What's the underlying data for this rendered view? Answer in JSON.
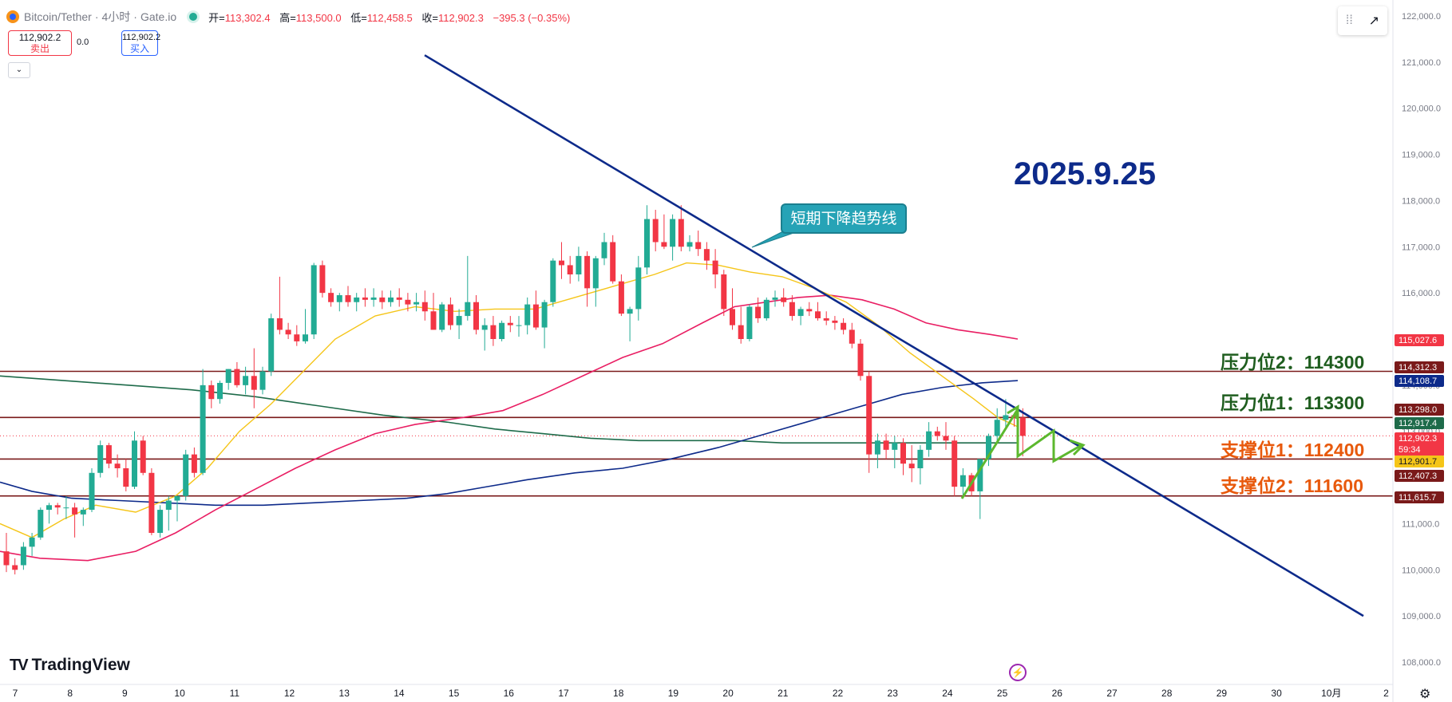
{
  "header": {
    "symbol": "Bitcoin/Tether",
    "interval": "4小时",
    "exchange": "Gate.io",
    "open_label": "开=",
    "open": "113,302.4",
    "high_label": "高=",
    "high": "113,500.0",
    "low_label": "低=",
    "low": "112,458.5",
    "close_label": "收=",
    "close": "112,902.3",
    "change": "−395.3 (−0.35%)"
  },
  "trade": {
    "sell_price": "112,902.2",
    "sell_label": "卖出",
    "spread": "0.0",
    "buy_price": "112,902.2",
    "buy_label": "买入"
  },
  "annotations": {
    "date": "2025.9.25",
    "trendline_label": "短期下降趋势线",
    "resistance2": "压力位2：114300",
    "resistance1": "压力位1：113300",
    "support1": "支撑位1：112400",
    "support2": "支撑位2：111600"
  },
  "branding": {
    "logo": "TradingView"
  },
  "colors": {
    "up": "#22ab94",
    "down": "#f23645",
    "ma_short": "#f5c518",
    "ma_mid": "#e91e63",
    "ma_long": "#0d2a8a",
    "ma_green": "#1e6b4a",
    "trendline": "#0d2a8a",
    "level": "#7a1a1a",
    "arrow": "#5cb82e"
  },
  "chart_data": {
    "type": "candlestick",
    "y_ticks": [
      "122,000.0",
      "121,000.0",
      "120,000.0",
      "119,000.0",
      "118,000.0",
      "117,000.0",
      "116,000.0",
      "115,000.0",
      "114,000.0",
      "113,000.0",
      "112,000.0",
      "111,000.0",
      "110,000.0",
      "109,000.0",
      "108,000.0"
    ],
    "ylim": [
      107700,
      122200
    ],
    "x_ticks": [
      "7",
      "8",
      "9",
      "10",
      "11",
      "12",
      "13",
      "14",
      "15",
      "16",
      "17",
      "18",
      "19",
      "20",
      "21",
      "22",
      "23",
      "24",
      "25",
      "26",
      "27",
      "28",
      "29",
      "30",
      "10月",
      "2"
    ],
    "candles": [
      [
        110400,
        110800,
        109950,
        110100
      ],
      [
        110100,
        110250,
        109900,
        110000
      ],
      [
        110100,
        110600,
        110000,
        110500
      ],
      [
        110500,
        110800,
        110300,
        110700
      ],
      [
        110700,
        111350,
        110650,
        111300
      ],
      [
        111300,
        111450,
        111000,
        111400
      ],
      [
        111400,
        111450,
        111200,
        111350
      ],
      [
        111350,
        111600,
        111100,
        111350
      ],
      [
        111350,
        111450,
        110700,
        111200
      ],
      [
        111200,
        111350,
        110950,
        111300
      ],
      [
        111300,
        112200,
        111250,
        112100
      ],
      [
        112100,
        112800,
        112000,
        112700
      ],
      [
        112700,
        112750,
        112200,
        112300
      ],
      [
        112300,
        112500,
        112000,
        112200
      ],
      [
        112200,
        112400,
        111700,
        111800
      ],
      [
        111800,
        113000,
        111750,
        112800
      ],
      [
        112800,
        112900,
        112050,
        112100
      ],
      [
        112100,
        112200,
        110750,
        110800
      ],
      [
        110800,
        111400,
        110700,
        111300
      ],
      [
        111300,
        111600,
        110850,
        111500
      ],
      [
        111500,
        111550,
        111050,
        111600
      ],
      [
        111600,
        112600,
        111500,
        112500
      ],
      [
        112500,
        112650,
        112000,
        112100
      ],
      [
        112100,
        114350,
        112050,
        114000
      ],
      [
        114000,
        114100,
        113500,
        113700
      ],
      [
        113700,
        114100,
        113600,
        114050
      ],
      [
        114050,
        114350,
        113900,
        114350
      ],
      [
        114350,
        114500,
        113950,
        114000
      ],
      [
        114000,
        114400,
        113800,
        114200
      ],
      [
        114200,
        114800,
        113500,
        113900
      ],
      [
        113900,
        114400,
        113800,
        114300
      ],
      [
        114300,
        115550,
        114200,
        115450
      ],
      [
        115450,
        116350,
        115100,
        115200
      ],
      [
        115200,
        115350,
        115000,
        115100
      ],
      [
        115100,
        115300,
        114850,
        114950
      ],
      [
        114950,
        115650,
        114900,
        115100
      ],
      [
        115100,
        116650,
        115000,
        116600
      ],
      [
        116600,
        116700,
        115900,
        116000
      ],
      [
        116000,
        116100,
        115700,
        115800
      ],
      [
        115800,
        116000,
        115600,
        115950
      ],
      [
        115950,
        116150,
        115700,
        115800
      ],
      [
        115800,
        116000,
        115600,
        115900
      ],
      [
        115900,
        116100,
        115700,
        115850
      ],
      [
        115850,
        116100,
        115700,
        115900
      ],
      [
        115900,
        116050,
        115650,
        115800
      ],
      [
        115800,
        116050,
        115700,
        115900
      ],
      [
        115900,
        116100,
        115700,
        115850
      ],
      [
        115850,
        116000,
        115600,
        115750
      ],
      [
        115750,
        116000,
        115600,
        115800
      ],
      [
        115800,
        116050,
        115400,
        115600
      ],
      [
        115600,
        116000,
        115200,
        115200
      ],
      [
        115200,
        115800,
        115150,
        115750
      ],
      [
        115750,
        115900,
        115200,
        115300
      ],
      [
        115300,
        115650,
        115000,
        115500
      ],
      [
        115500,
        116800,
        115400,
        115800
      ],
      [
        115800,
        115950,
        115100,
        115200
      ],
      [
        115200,
        115450,
        114750,
        115300
      ],
      [
        115300,
        115500,
        114850,
        115000
      ],
      [
        115000,
        115400,
        114950,
        115350
      ],
      [
        115350,
        115500,
        115150,
        115300
      ],
      [
        115300,
        115500,
        115050,
        115300
      ],
      [
        115300,
        115900,
        115100,
        115750
      ],
      [
        115750,
        116050,
        115200,
        115250
      ],
      [
        115250,
        115850,
        114800,
        115800
      ],
      [
        115800,
        116750,
        115700,
        116700
      ],
      [
        116700,
        117100,
        116300,
        116600
      ],
      [
        116600,
        116800,
        116200,
        116400
      ],
      [
        116400,
        117000,
        116250,
        116800
      ],
      [
        116800,
        116900,
        115700,
        116100
      ],
      [
        116100,
        116800,
        115700,
        116750
      ],
      [
        116750,
        117300,
        116600,
        117100
      ],
      [
        117100,
        117250,
        116200,
        116250
      ],
      [
        116250,
        116400,
        115500,
        115550
      ],
      [
        115550,
        115700,
        114950,
        115650
      ],
      [
        115650,
        116800,
        115400,
        116550
      ],
      [
        116550,
        117900,
        116400,
        117600
      ],
      [
        117600,
        117800,
        116900,
        117100
      ],
      [
        117100,
        117700,
        116950,
        117000
      ],
      [
        117000,
        117700,
        116700,
        117600
      ],
      [
        117600,
        117900,
        116900,
        117000
      ],
      [
        117000,
        117250,
        116900,
        117100
      ],
      [
        117100,
        117350,
        116800,
        116950
      ],
      [
        116950,
        117100,
        116500,
        116700
      ],
      [
        116700,
        116950,
        116100,
        116400
      ],
      [
        116400,
        116500,
        115500,
        115650
      ],
      [
        115650,
        116100,
        115200,
        115300
      ],
      [
        115300,
        115700,
        114900,
        115000
      ],
      [
        115000,
        115750,
        114950,
        115700
      ],
      [
        115700,
        115900,
        115350,
        115450
      ],
      [
        115450,
        115900,
        115400,
        115850
      ],
      [
        115850,
        116050,
        115700,
        115900
      ],
      [
        115900,
        116100,
        115700,
        115800
      ],
      [
        115800,
        115950,
        115400,
        115500
      ],
      [
        115500,
        115700,
        115300,
        115650
      ],
      [
        115650,
        115800,
        115500,
        115600
      ],
      [
        115600,
        115800,
        115400,
        115450
      ],
      [
        115450,
        115600,
        115300,
        115400
      ],
      [
        115400,
        115500,
        115200,
        115350
      ],
      [
        115350,
        115450,
        115100,
        115200
      ],
      [
        115200,
        115350,
        114800,
        114900
      ],
      [
        114900,
        115000,
        114100,
        114200
      ],
      [
        114200,
        114300,
        112100,
        112500
      ],
      [
        112500,
        112950,
        112200,
        112800
      ],
      [
        112800,
        112950,
        112400,
        112600
      ],
      [
        112600,
        112900,
        112200,
        112750
      ],
      [
        112750,
        112850,
        112050,
        112300
      ],
      [
        112300,
        112700,
        111900,
        112200
      ],
      [
        112200,
        112700,
        111850,
        112600
      ],
      [
        112600,
        113200,
        112450,
        113000
      ],
      [
        113000,
        113100,
        112800,
        112900
      ],
      [
        112900,
        113200,
        112600,
        112800
      ],
      [
        112800,
        112900,
        111600,
        111800
      ],
      [
        111800,
        112200,
        111550,
        112050
      ],
      [
        112050,
        112100,
        111600,
        111700
      ],
      [
        111700,
        112300,
        111100,
        112400
      ],
      [
        112400,
        112950,
        112250,
        112900
      ],
      [
        112900,
        113500,
        112800,
        113250
      ],
      [
        113250,
        113700,
        113050,
        113350
      ],
      [
        113350,
        113400,
        113100,
        113300
      ],
      [
        113300,
        113500,
        112458,
        112902
      ]
    ],
    "ma_short": [
      [
        0,
        111000
      ],
      [
        40,
        110700
      ],
      [
        80,
        111100
      ],
      [
        120,
        111400
      ],
      [
        170,
        111250
      ],
      [
        220,
        111600
      ],
      [
        260,
        112200
      ],
      [
        300,
        113000
      ],
      [
        340,
        113600
      ],
      [
        380,
        114300
      ],
      [
        420,
        115000
      ],
      [
        470,
        115500
      ],
      [
        520,
        115700
      ],
      [
        570,
        115600
      ],
      [
        620,
        115650
      ],
      [
        670,
        115650
      ],
      [
        720,
        115900
      ],
      [
        770,
        116150
      ],
      [
        820,
        116400
      ],
      [
        860,
        116650
      ],
      [
        900,
        116600
      ],
      [
        940,
        116450
      ],
      [
        980,
        116350
      ],
      [
        1020,
        116100
      ],
      [
        1060,
        115800
      ],
      [
        1100,
        115300
      ],
      [
        1140,
        114700
      ],
      [
        1180,
        114200
      ],
      [
        1220,
        113700
      ],
      [
        1250,
        113300
      ],
      [
        1275,
        113100
      ]
    ],
    "ma_mid": [
      [
        0,
        110400
      ],
      [
        50,
        110250
      ],
      [
        110,
        110200
      ],
      [
        170,
        110400
      ],
      [
        220,
        110800
      ],
      [
        270,
        111300
      ],
      [
        320,
        111750
      ],
      [
        370,
        112200
      ],
      [
        420,
        112600
      ],
      [
        470,
        112950
      ],
      [
        520,
        113150
      ],
      [
        580,
        113300
      ],
      [
        630,
        113450
      ],
      [
        680,
        113800
      ],
      [
        730,
        114200
      ],
      [
        780,
        114600
      ],
      [
        830,
        114900
      ],
      [
        880,
        115350
      ],
      [
        920,
        115700
      ],
      [
        960,
        115800
      ],
      [
        1000,
        115900
      ],
      [
        1040,
        115950
      ],
      [
        1080,
        115850
      ],
      [
        1120,
        115650
      ],
      [
        1160,
        115350
      ],
      [
        1200,
        115200
      ],
      [
        1240,
        115100
      ],
      [
        1275,
        115000
      ]
    ],
    "ma_long": [
      [
        0,
        111900
      ],
      [
        40,
        111700
      ],
      [
        90,
        111550
      ],
      [
        150,
        111500
      ],
      [
        210,
        111450
      ],
      [
        270,
        111400
      ],
      [
        330,
        111400
      ],
      [
        390,
        111450
      ],
      [
        450,
        111500
      ],
      [
        510,
        111550
      ],
      [
        560,
        111650
      ],
      [
        610,
        111800
      ],
      [
        660,
        111950
      ],
      [
        720,
        112100
      ],
      [
        780,
        112200
      ],
      [
        840,
        112400
      ],
      [
        900,
        112650
      ],
      [
        960,
        112950
      ],
      [
        1020,
        113250
      ],
      [
        1080,
        113550
      ],
      [
        1130,
        113800
      ],
      [
        1180,
        113950
      ],
      [
        1230,
        114050
      ],
      [
        1275,
        114100
      ]
    ],
    "ma_green": [
      [
        0,
        114200
      ],
      [
        80,
        114100
      ],
      [
        160,
        114000
      ],
      [
        240,
        113900
      ],
      [
        320,
        113750
      ],
      [
        400,
        113550
      ],
      [
        480,
        113350
      ],
      [
        560,
        113200
      ],
      [
        620,
        113050
      ],
      [
        680,
        112950
      ],
      [
        740,
        112850
      ],
      [
        800,
        112800
      ],
      [
        860,
        112800
      ],
      [
        920,
        112800
      ],
      [
        980,
        112750
      ],
      [
        1040,
        112750
      ],
      [
        1100,
        112750
      ],
      [
        1160,
        112750
      ],
      [
        1220,
        112750
      ],
      [
        1275,
        112750
      ]
    ],
    "trendline": [
      [
        532,
        121150
      ],
      [
        1708,
        109000
      ]
    ],
    "levels": [
      {
        "name": "压力位2",
        "value": 114300
      },
      {
        "name": "压力位1",
        "value": 113300
      },
      {
        "name": "支撑位1",
        "value": 112400
      },
      {
        "name": "支撑位2",
        "value": 111600
      }
    ],
    "price_tags": [
      {
        "text": "115,027.6",
        "value": 115027.6,
        "bg": "#f23645"
      },
      {
        "text": "114,312.3",
        "value": 114312.3,
        "bg": "#7a1a1a"
      },
      {
        "text": "114,108.7",
        "value": 114108.7,
        "bg": "#0d2a8a"
      },
      {
        "text": "113,298.0",
        "value": 113298.0,
        "bg": "#7a1a1a"
      },
      {
        "text": "112,917.4",
        "value": 112917.4,
        "bg": "#1e6b4a"
      },
      {
        "text": "112,902.3",
        "value": 112902.3,
        "bg": "#f23645",
        "sub": "59:34"
      },
      {
        "text": "112,901.7",
        "value": 112901.7,
        "bg": "#f5c518"
      },
      {
        "text": "112,407.3",
        "value": 112407.3,
        "bg": "#7a1a1a"
      },
      {
        "text": "111,615.7",
        "value": 111615.7,
        "bg": "#7a1a1a"
      }
    ]
  }
}
